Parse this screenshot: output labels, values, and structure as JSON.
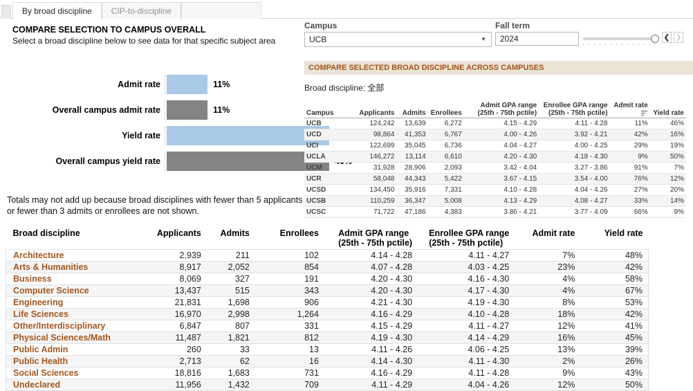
{
  "tabs": [
    {
      "label": "By broad discipline",
      "active": true
    },
    {
      "label": "CIP-to-discipline",
      "active": false
    }
  ],
  "left_panel": {
    "title": "COMPARE SELECTION TO CAMPUS OVERALL",
    "subtitle": "Select a broad discipline below to see data for that specific subject area",
    "note": "Totals may not add up because broad disciplines with fewer than 5 applicants or fewer than 3 admits or enrollees are not shown."
  },
  "filters": {
    "campus": {
      "label": "Campus",
      "value": "UCB"
    },
    "fall_term": {
      "label": "Fall term",
      "value": "2024"
    }
  },
  "chart_data": {
    "type": "bar",
    "orientation": "horizontal",
    "categories": [
      "Admit rate",
      "Overall campus admit rate",
      "Yield rate",
      "Overall campus yield rate"
    ],
    "values": [
      11,
      11,
      46,
      46
    ],
    "labels": [
      "11%",
      "11%",
      "46%",
      "46%"
    ],
    "colors": [
      "#a9c9e6",
      "#848484",
      "#a9c9e6",
      "#848484"
    ],
    "xlim": [
      0,
      50
    ],
    "grid": false,
    "legend": "none"
  },
  "campus_section": {
    "header": "COMPARE SELECTED BROAD DISCIPLINE ACROSS CAMPUSES",
    "broad_discipline_label": "Broad discipline: 全部",
    "table": {
      "columns": [
        "Campus",
        "Applicants",
        "Admits",
        "Enrollees",
        "Admit GPA range\n(25th - 75th pctile)",
        "Enrollee GPA range\n(25th - 75th pctile)",
        "Admit rate",
        "Yield rate"
      ],
      "sort_indicator_col": 6,
      "rows": [
        [
          "UCB",
          "124,242",
          "13,639",
          "6,272",
          "4.15 - 4.29",
          "4.11 - 4.28",
          "11%",
          "46%"
        ],
        [
          "UCD",
          "98,864",
          "41,353",
          "6,767",
          "4.00 - 4.26",
          "3.92 - 4.21",
          "42%",
          "16%"
        ],
        [
          "UCI",
          "122,699",
          "35,045",
          "6,736",
          "4.04 - 4.27",
          "4.00 - 4.25",
          "29%",
          "19%"
        ],
        [
          "UCLA",
          "146,272",
          "13,114",
          "6,610",
          "4.20 - 4.30",
          "4.18 - 4.30",
          "9%",
          "50%"
        ],
        [
          "UCM",
          "31,928",
          "28,906",
          "2,093",
          "3.42 - 4.04",
          "3.27 - 3.86",
          "91%",
          "7%"
        ],
        [
          "UCR",
          "58,048",
          "44,343",
          "5,422",
          "3.67 - 4.15",
          "3.54 - 4.00",
          "76%",
          "12%"
        ],
        [
          "UCSD",
          "134,450",
          "35,916",
          "7,331",
          "4.10 - 4.28",
          "4.04 - 4.26",
          "27%",
          "20%"
        ],
        [
          "UCSB",
          "110,259",
          "36,347",
          "5,008",
          "4.13 - 4.29",
          "4.08 - 4.27",
          "33%",
          "14%"
        ],
        [
          "UCSC",
          "71,722",
          "47,186",
          "4,383",
          "3.86 - 4.21",
          "3.77 - 4.09",
          "66%",
          "9%"
        ]
      ]
    }
  },
  "discipline_table": {
    "columns": [
      "Broad discipline",
      "Applicants",
      "Admits",
      "Enrollees",
      "Admit GPA range\n(25th - 75th pctile)",
      "Enrollee GPA range\n(25th - 75th pctile)",
      "Admit rate",
      "Yield rate"
    ],
    "rows": [
      [
        "Architecture",
        "2,939",
        "211",
        "102",
        "4.14 - 4.28",
        "4.11 - 4.27",
        "7%",
        "48%"
      ],
      [
        "Arts & Humanities",
        "8,917",
        "2,052",
        "854",
        "4.07 - 4.28",
        "4.03 - 4.25",
        "23%",
        "42%"
      ],
      [
        "Business",
        "8,069",
        "327",
        "191",
        "4.20 - 4.30",
        "4.16 - 4.30",
        "4%",
        "58%"
      ],
      [
        "Computer Science",
        "13,437",
        "515",
        "343",
        "4.20 - 4.30",
        "4.17 - 4.30",
        "4%",
        "67%"
      ],
      [
        "Engineering",
        "21,831",
        "1,698",
        "906",
        "4.21 - 4.30",
        "4.19 - 4.30",
        "8%",
        "53%"
      ],
      [
        "Life Sciences",
        "16,970",
        "2,998",
        "1,264",
        "4.16 - 4.29",
        "4.10 - 4.28",
        "18%",
        "42%"
      ],
      [
        "Other/Interdisciplinary",
        "6,847",
        "807",
        "331",
        "4.15 - 4.29",
        "4.11 - 4.27",
        "12%",
        "41%"
      ],
      [
        "Physical Sciences/Math",
        "11,487",
        "1,821",
        "812",
        "4.19 - 4.30",
        "4.14 - 4.29",
        "16%",
        "45%"
      ],
      [
        "Public Admin",
        "260",
        "33",
        "13",
        "4.11 - 4.26",
        "4.06 - 4.25",
        "13%",
        "39%"
      ],
      [
        "Public Health",
        "2,713",
        "62",
        "16",
        "4.14 - 4.30",
        "4.11 - 4.30",
        "2%",
        "26%"
      ],
      [
        "Social Sciences",
        "18,816",
        "1,683",
        "731",
        "4.16 - 4.29",
        "4.11 - 4.28",
        "9%",
        "43%"
      ],
      [
        "Undeclared",
        "11,956",
        "1,432",
        "709",
        "4.11 - 4.29",
        "4.04 - 4.26",
        "12%",
        "50%"
      ]
    ]
  },
  "colors": {
    "bar_blue": "#a9c9e6",
    "bar_gray": "#848484",
    "section_header_bg": "#eae4d4",
    "section_header_text": "#a3511b",
    "discipline_link": "#a3561d"
  }
}
